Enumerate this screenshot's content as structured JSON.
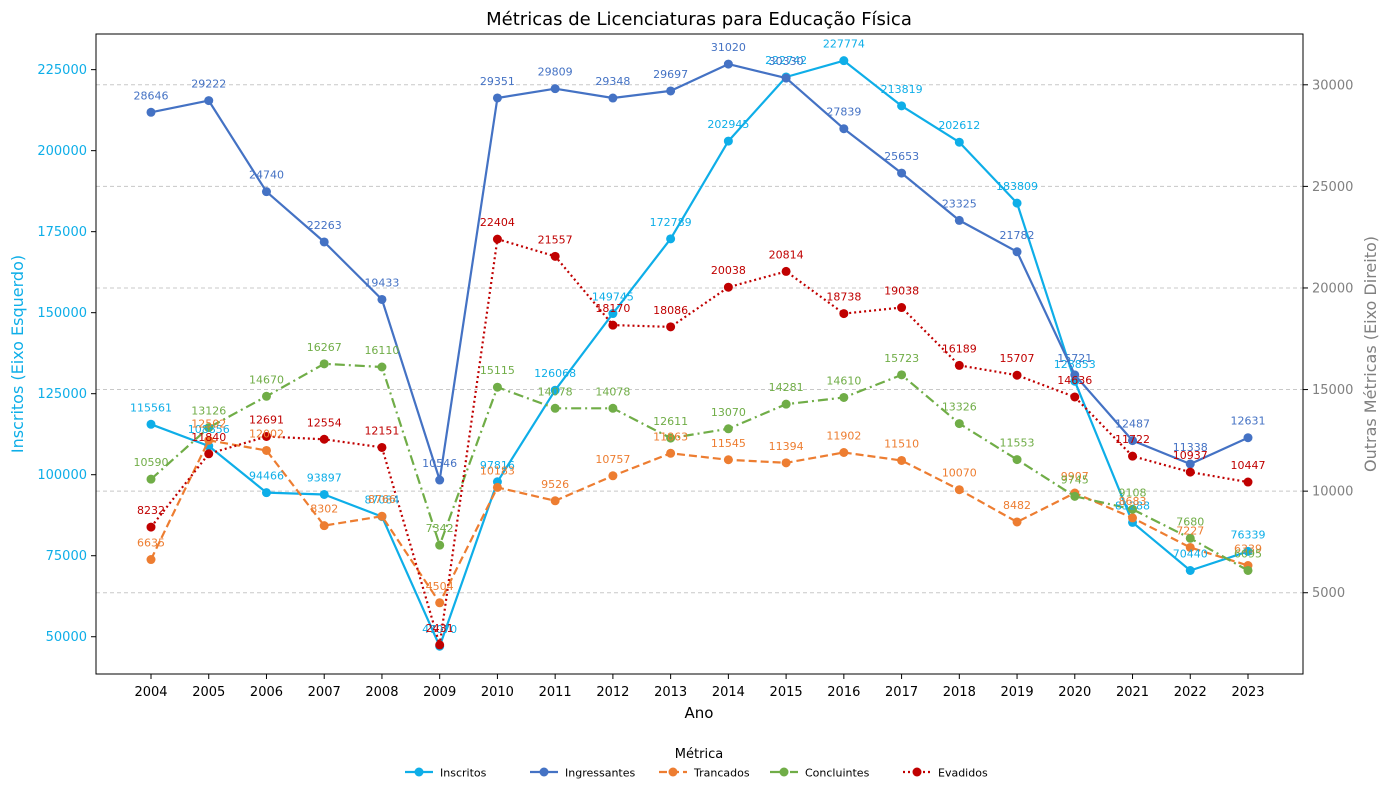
{
  "chart_data": {
    "type": "line",
    "title": "Métricas de Licenciaturas para Educação Física",
    "xlabel": "Ano",
    "ylabel_left": "Inscritos (Eixo Esquerdo)",
    "ylabel_right": "Outras Métricas (Eixo Direito)",
    "x": [
      2004,
      2005,
      2006,
      2007,
      2008,
      2009,
      2010,
      2011,
      2012,
      2013,
      2014,
      2015,
      2016,
      2017,
      2018,
      2019,
      2020,
      2021,
      2022,
      2023
    ],
    "ylim_left": [
      38500,
      236000
    ],
    "ylim_right": [
      1000,
      32500
    ],
    "yticks_left": [
      50000,
      75000,
      100000,
      125000,
      150000,
      175000,
      200000,
      225000
    ],
    "yticks_right": [
      5000,
      10000,
      15000,
      20000,
      25000,
      30000
    ],
    "grid": "horizontal dashed",
    "legend_title": "Métrica",
    "legend_position": "bottom-center",
    "series": [
      {
        "name": "Inscritos",
        "axis": "left",
        "color": "#0eaee8",
        "dash": "solid",
        "values": [
          115561,
          108856,
          94466,
          93897,
          87084,
          47070,
          97816,
          126068,
          149745,
          172789,
          202945,
          222742,
          227774,
          213819,
          202612,
          183809,
          128853,
          85288,
          70440,
          76339
        ]
      },
      {
        "name": "Ingressantes",
        "axis": "right",
        "color": "#4472c4",
        "dash": "solid",
        "values": [
          28646,
          29222,
          24740,
          22263,
          19433,
          10546,
          29351,
          29809,
          29348,
          29697,
          31020,
          30330,
          27839,
          25653,
          23325,
          21782,
          15721,
          12487,
          11338,
          12631
        ]
      },
      {
        "name": "Trancados",
        "axis": "right",
        "color": "#ed7d31",
        "dash": "dashed",
        "values": [
          6635,
          12502,
          12002,
          8302,
          8766,
          4504,
          10183,
          9526,
          10757,
          11863,
          11545,
          11394,
          11902,
          11510,
          10070,
          8482,
          9907,
          8683,
          7227,
          6339
        ]
      },
      {
        "name": "Concluintes",
        "axis": "right",
        "color": "#70ad47",
        "dash": "dashdot",
        "values": [
          10590,
          13126,
          14670,
          16267,
          16110,
          7342,
          15115,
          14078,
          14078,
          12611,
          13070,
          14281,
          14610,
          15723,
          13326,
          11553,
          9745,
          9108,
          7680,
          6095
        ]
      },
      {
        "name": "Evadidos",
        "axis": "right",
        "color": "#c00000",
        "dash": "dotted",
        "values": [
          8232,
          11840,
          12691,
          12554,
          12151,
          2431,
          22404,
          21557,
          18170,
          18086,
          20038,
          20814,
          18738,
          19038,
          16189,
          15707,
          14636,
          11722,
          10937,
          10447
        ]
      }
    ],
    "data_labels": [
      [
        "115561",
        "108856",
        "94466",
        "93897",
        "87084",
        "47070",
        "97816",
        "126068",
        "149745",
        "172789",
        "202945",
        "222742",
        "227774",
        "213819",
        "202612",
        "183809",
        "128853",
        "85288",
        "70440",
        "76339"
      ],
      [
        "28646",
        "29222",
        "24740",
        "22263",
        "19433",
        "10546",
        "29351",
        "29809",
        "29348",
        "29697",
        "31020",
        "30330",
        "27839",
        "25653",
        "23325",
        "21782",
        "15721",
        "12487",
        "11338",
        "12631"
      ],
      [
        "6635",
        "12502",
        "12002",
        "8302",
        "8766",
        "4504",
        "10183",
        "9526",
        "10757",
        "11863",
        "11545",
        "11394",
        "11902",
        "11510",
        "10070",
        "8482",
        "9907",
        "8683",
        "7227",
        "6339"
      ],
      [
        "10590",
        "13126",
        "14670",
        "16267",
        "16110",
        "7342",
        "15115",
        "14078",
        "14078",
        "12611",
        "13070",
        "14281",
        "14610",
        "15723",
        "13326",
        "11553",
        "9745",
        "9108",
        "7680",
        "6095"
      ],
      [
        "8232",
        "11840",
        "12691",
        "12554",
        "12151",
        "2431",
        "22404",
        "21557",
        "18170",
        "18086",
        "20038",
        "20814",
        "18738",
        "19038",
        "16189",
        "15707",
        "14636",
        "11722",
        "10937",
        "10447"
      ]
    ],
    "colors": {
      "left_axis": "#0eaee8",
      "right_axis": "#808080",
      "grid": "#c8c8c8",
      "frame": "#000000"
    }
  }
}
